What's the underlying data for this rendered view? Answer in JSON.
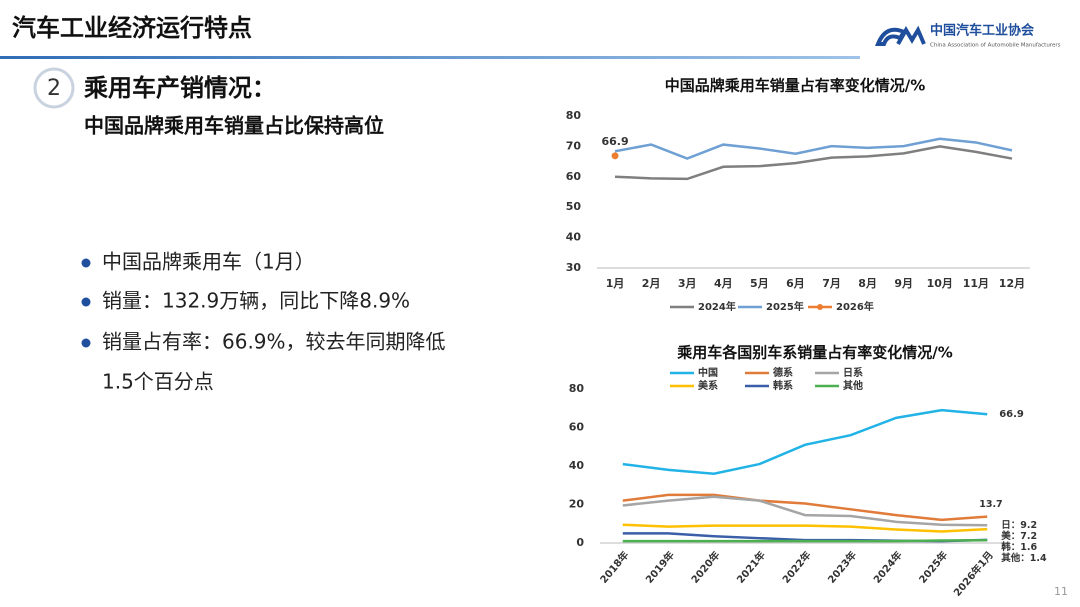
{
  "header": {
    "title": "汽车工业经济运行特点",
    "logo_name": "中国汽车工业协会",
    "logo_english": "China Association of Automobile Manufacturers"
  },
  "section": {
    "number": "2",
    "heading": "乘用车产销情况：",
    "subheading": "中国品牌乘用车销量占比保持高位"
  },
  "bullets": [
    [
      "中国品牌乘用车（1月）"
    ],
    [
      "销量：132.9万辆，同比下降8.9%"
    ],
    [
      "销量占有率：66.9%，较去年同期降低",
      "1.5个百分点"
    ]
  ],
  "page_number": "11",
  "chart_data": [
    {
      "type": "line",
      "title": "中国品牌乘用车销量占有率变化情况/%",
      "legend": "bottom",
      "categories": [
        "1月",
        "2月",
        "3月",
        "4月",
        "5月",
        "6月",
        "7月",
        "8月",
        "9月",
        "10月",
        "11月",
        "12月"
      ],
      "series": [
        {
          "name": "2024年",
          "color": "#7f7f7f",
          "values": [
            60.0,
            59.5,
            59.3,
            63.3,
            63.5,
            64.5,
            66.3,
            66.7,
            67.7,
            70.0,
            68.2,
            66.0
          ]
        },
        {
          "name": "2025年",
          "color": "#6fa0d4",
          "values": [
            68.4,
            70.6,
            66.0,
            70.6,
            69.3,
            67.6,
            70.1,
            69.5,
            70.1,
            72.5,
            71.3,
            68.7
          ]
        },
        {
          "name": "2026年",
          "color": "#ed7d31",
          "marker": true,
          "values": [
            66.9,
            null,
            null,
            null,
            null,
            null,
            null,
            null,
            null,
            null,
            null,
            null
          ]
        }
      ],
      "ylim": [
        30,
        80
      ],
      "yticks": [
        30,
        40,
        50,
        60,
        70,
        80
      ]
    },
    {
      "type": "line",
      "title": "乘用车各国别车系销量占有率变化情况/%",
      "legend": "top",
      "categories": [
        "2018年",
        "2019年",
        "2020年",
        "2021年",
        "2022年",
        "2023年",
        "2024年",
        "2025年",
        "2026年1月"
      ],
      "series": [
        {
          "name": "中国",
          "color": "#22b3e6",
          "values": [
            41,
            38,
            36,
            41,
            51,
            56,
            65,
            69,
            66.9
          ],
          "value_labels": [
            null,
            null,
            null,
            null,
            null,
            null,
            null,
            null,
            "66.9"
          ]
        },
        {
          "name": "德系",
          "color": "#e07b39",
          "values": [
            22,
            25,
            25,
            22,
            20.5,
            17.5,
            14.5,
            12,
            13.7
          ],
          "value_labels": [
            null,
            null,
            null,
            null,
            null,
            null,
            null,
            null,
            "13.7"
          ]
        },
        {
          "name": "日系",
          "color": "#a5a5a5",
          "values": [
            19.5,
            22,
            24,
            22,
            14.5,
            14,
            11,
            9.5,
            9.2
          ],
          "value_labels": [
            null,
            null,
            null,
            null,
            null,
            null,
            null,
            null,
            "日：9.2"
          ]
        },
        {
          "name": "美系",
          "color": "#ffc000",
          "values": [
            9.5,
            8.5,
            9,
            9,
            9,
            8.5,
            7,
            6,
            7.2
          ],
          "value_labels": [
            null,
            null,
            null,
            null,
            null,
            null,
            null,
            null,
            "美：7.2"
          ]
        },
        {
          "name": "韩系",
          "color": "#3a5fa8",
          "values": [
            5,
            5,
            3.5,
            2.5,
            1.5,
            1.5,
            1.2,
            1,
            1.6
          ],
          "value_labels": [
            null,
            null,
            null,
            null,
            null,
            null,
            null,
            null,
            "韩：1.6"
          ]
        },
        {
          "name": "其他",
          "color": "#4caf50",
          "values": [
            1,
            1,
            1,
            1,
            1,
            1,
            1,
            1.3,
            1.4
          ],
          "value_labels": [
            null,
            null,
            null,
            null,
            null,
            null,
            null,
            null,
            "其他：1.4"
          ]
        }
      ],
      "ylim": [
        0,
        80
      ],
      "yticks": [
        0,
        20,
        40,
        60,
        80
      ]
    }
  ]
}
